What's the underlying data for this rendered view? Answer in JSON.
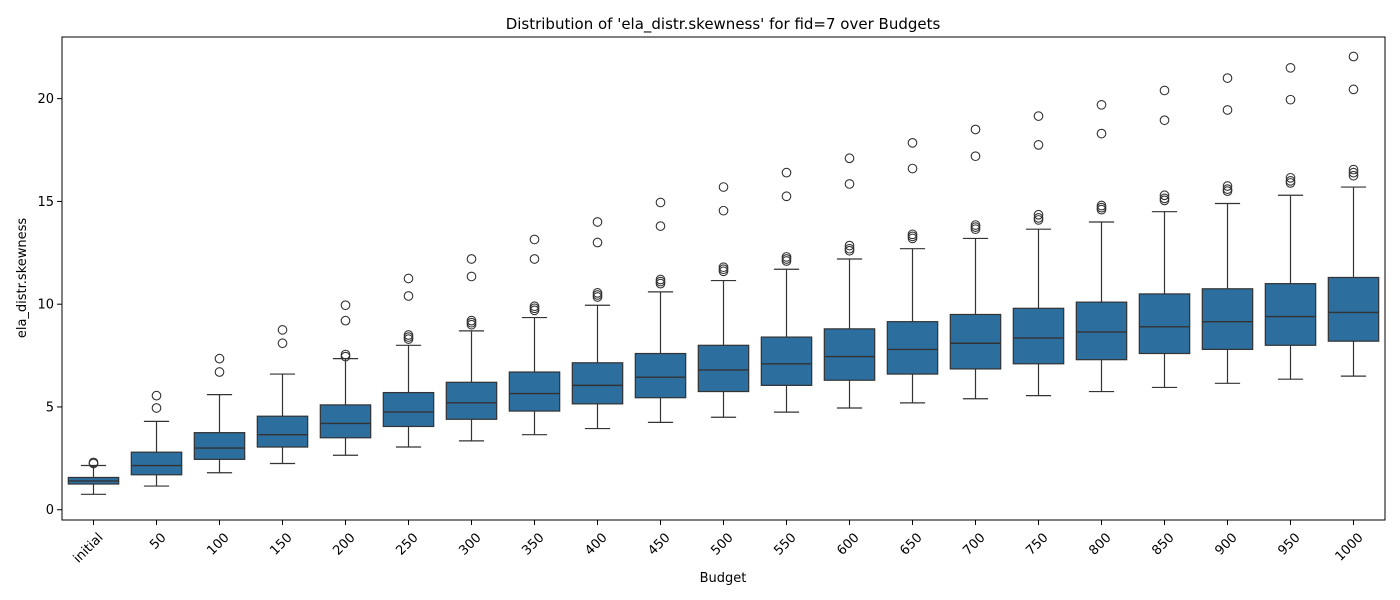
{
  "chart_data": {
    "type": "box",
    "title": "Distribution of 'ela_distr.skewness' for fid=7 over Budgets",
    "xlabel": "Budget",
    "ylabel": "ela_distr.skewness",
    "ylim": [
      -0.5,
      23
    ],
    "yticks": [
      0,
      5,
      10,
      15,
      20
    ],
    "grid": false,
    "box_color": "#2c6e9e",
    "line_color": "#333333",
    "categories": [
      "initial",
      "50",
      "100",
      "150",
      "200",
      "250",
      "300",
      "350",
      "400",
      "450",
      "500",
      "550",
      "600",
      "650",
      "700",
      "750",
      "800",
      "850",
      "900",
      "950",
      "1000"
    ],
    "boxes": [
      {
        "whislo": 0.75,
        "q1": 1.25,
        "med": 1.4,
        "q3": 1.57,
        "whishi": 2.15,
        "fliers": [
          2.25,
          2.3
        ]
      },
      {
        "whislo": 1.15,
        "q1": 1.7,
        "med": 2.15,
        "q3": 2.8,
        "whishi": 4.3,
        "fliers": [
          4.95,
          5.55
        ]
      },
      {
        "whislo": 1.8,
        "q1": 2.45,
        "med": 3.0,
        "q3": 3.75,
        "whishi": 5.6,
        "fliers": [
          6.7,
          7.35
        ]
      },
      {
        "whislo": 2.25,
        "q1": 3.05,
        "med": 3.65,
        "q3": 4.55,
        "whishi": 6.6,
        "fliers": [
          8.1,
          8.75
        ]
      },
      {
        "whislo": 2.65,
        "q1": 3.5,
        "med": 4.2,
        "q3": 5.1,
        "whishi": 7.35,
        "fliers": [
          7.45,
          7.55,
          9.2,
          9.95
        ]
      },
      {
        "whislo": 3.05,
        "q1": 4.05,
        "med": 4.75,
        "q3": 5.7,
        "whishi": 8.0,
        "fliers": [
          8.3,
          8.4,
          8.5,
          10.4,
          11.25
        ]
      },
      {
        "whislo": 3.35,
        "q1": 4.4,
        "med": 5.2,
        "q3": 6.2,
        "whishi": 8.7,
        "fliers": [
          9.0,
          9.1,
          9.2,
          11.35,
          12.2
        ]
      },
      {
        "whislo": 3.65,
        "q1": 4.8,
        "med": 5.65,
        "q3": 6.7,
        "whishi": 9.35,
        "fliers": [
          9.7,
          9.8,
          9.9,
          12.2,
          13.15
        ]
      },
      {
        "whislo": 3.95,
        "q1": 5.15,
        "med": 6.05,
        "q3": 7.15,
        "whishi": 9.95,
        "fliers": [
          10.35,
          10.45,
          10.55,
          13.0,
          14.0
        ]
      },
      {
        "whislo": 4.25,
        "q1": 5.45,
        "med": 6.45,
        "q3": 7.6,
        "whishi": 10.6,
        "fliers": [
          11.0,
          11.1,
          11.2,
          13.8,
          14.95
        ]
      },
      {
        "whislo": 4.5,
        "q1": 5.75,
        "med": 6.8,
        "q3": 8.0,
        "whishi": 11.15,
        "fliers": [
          11.6,
          11.7,
          11.8,
          14.55,
          15.7
        ]
      },
      {
        "whislo": 4.75,
        "q1": 6.05,
        "med": 7.1,
        "q3": 8.4,
        "whishi": 11.7,
        "fliers": [
          12.1,
          12.2,
          12.3,
          15.25,
          16.4
        ]
      },
      {
        "whislo": 4.95,
        "q1": 6.3,
        "med": 7.45,
        "q3": 8.8,
        "whishi": 12.2,
        "fliers": [
          12.6,
          12.7,
          12.85,
          15.85,
          17.1
        ]
      },
      {
        "whislo": 5.2,
        "q1": 6.6,
        "med": 7.8,
        "q3": 9.15,
        "whishi": 12.7,
        "fliers": [
          13.2,
          13.3,
          13.4,
          16.6,
          17.85
        ]
      },
      {
        "whislo": 5.4,
        "q1": 6.85,
        "med": 8.1,
        "q3": 9.5,
        "whishi": 13.2,
        "fliers": [
          13.65,
          13.75,
          13.85,
          17.2,
          18.5
        ]
      },
      {
        "whislo": 5.55,
        "q1": 7.1,
        "med": 8.35,
        "q3": 9.8,
        "whishi": 13.65,
        "fliers": [
          14.1,
          14.2,
          14.35,
          17.75,
          19.15
        ]
      },
      {
        "whislo": 5.75,
        "q1": 7.3,
        "med": 8.65,
        "q3": 10.1,
        "whishi": 14.0,
        "fliers": [
          14.6,
          14.7,
          14.8,
          18.3,
          19.7
        ]
      },
      {
        "whislo": 5.95,
        "q1": 7.6,
        "med": 8.9,
        "q3": 10.5,
        "whishi": 14.5,
        "fliers": [
          15.05,
          15.15,
          15.3,
          18.95,
          20.4
        ]
      },
      {
        "whislo": 6.15,
        "q1": 7.8,
        "med": 9.15,
        "q3": 10.75,
        "whishi": 14.9,
        "fliers": [
          15.5,
          15.6,
          15.75,
          19.45,
          21.0
        ]
      },
      {
        "whislo": 6.35,
        "q1": 8.0,
        "med": 9.4,
        "q3": 11.0,
        "whishi": 15.3,
        "fliers": [
          15.9,
          16.0,
          16.15,
          19.95,
          21.5
        ]
      },
      {
        "whislo": 6.5,
        "q1": 8.2,
        "med": 9.6,
        "q3": 11.3,
        "whishi": 15.7,
        "fliers": [
          16.25,
          16.4,
          16.55,
          20.45,
          22.05
        ]
      }
    ]
  }
}
